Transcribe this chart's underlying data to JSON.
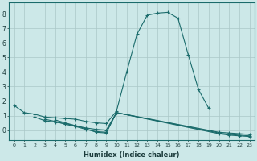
{
  "xlabel": "Humidex (Indice chaleur)",
  "background_color": "#cce8e8",
  "grid_color": "#aac8c8",
  "line_color": "#1a6b6b",
  "xlim": [
    -0.5,
    23.5
  ],
  "ylim": [
    -0.7,
    8.8
  ],
  "xticks": [
    0,
    1,
    2,
    3,
    4,
    5,
    6,
    7,
    8,
    9,
    10,
    11,
    12,
    13,
    14,
    15,
    16,
    17,
    18,
    19,
    20,
    21,
    22,
    23
  ],
  "yticks": [
    0,
    1,
    2,
    3,
    4,
    5,
    6,
    7,
    8
  ],
  "lines": [
    {
      "x": [
        0,
        1,
        2,
        3,
        4,
        5,
        6,
        7,
        8,
        9,
        10,
        11,
        12,
        13,
        14,
        15,
        16,
        17,
        18,
        19
      ],
      "y": [
        1.7,
        1.2,
        1.1,
        0.9,
        0.85,
        0.8,
        0.75,
        0.6,
        0.5,
        0.45,
        1.3,
        4.0,
        6.6,
        7.9,
        8.05,
        8.1,
        7.7,
        5.2,
        2.8,
        1.5
      ]
    },
    {
      "x": [
        2,
        3,
        4,
        5,
        6,
        7,
        8,
        9,
        10,
        20,
        21,
        22,
        23
      ],
      "y": [
        0.9,
        0.65,
        0.55,
        0.45,
        0.3,
        0.15,
        0.05,
        0.0,
        1.2,
        -0.15,
        -0.2,
        -0.25,
        -0.3
      ]
    },
    {
      "x": [
        3,
        4,
        5,
        6,
        7,
        8,
        9,
        10,
        20,
        21,
        22,
        23
      ],
      "y": [
        0.75,
        0.6,
        0.4,
        0.25,
        0.05,
        -0.1,
        -0.15,
        1.2,
        -0.2,
        -0.3,
        -0.35,
        -0.4
      ]
    },
    {
      "x": [
        4,
        5,
        6,
        7,
        8,
        9,
        10,
        20,
        21,
        22,
        23
      ],
      "y": [
        0.7,
        0.5,
        0.3,
        0.1,
        -0.15,
        -0.2,
        1.2,
        -0.25,
        -0.35,
        -0.4,
        -0.45
      ]
    }
  ]
}
